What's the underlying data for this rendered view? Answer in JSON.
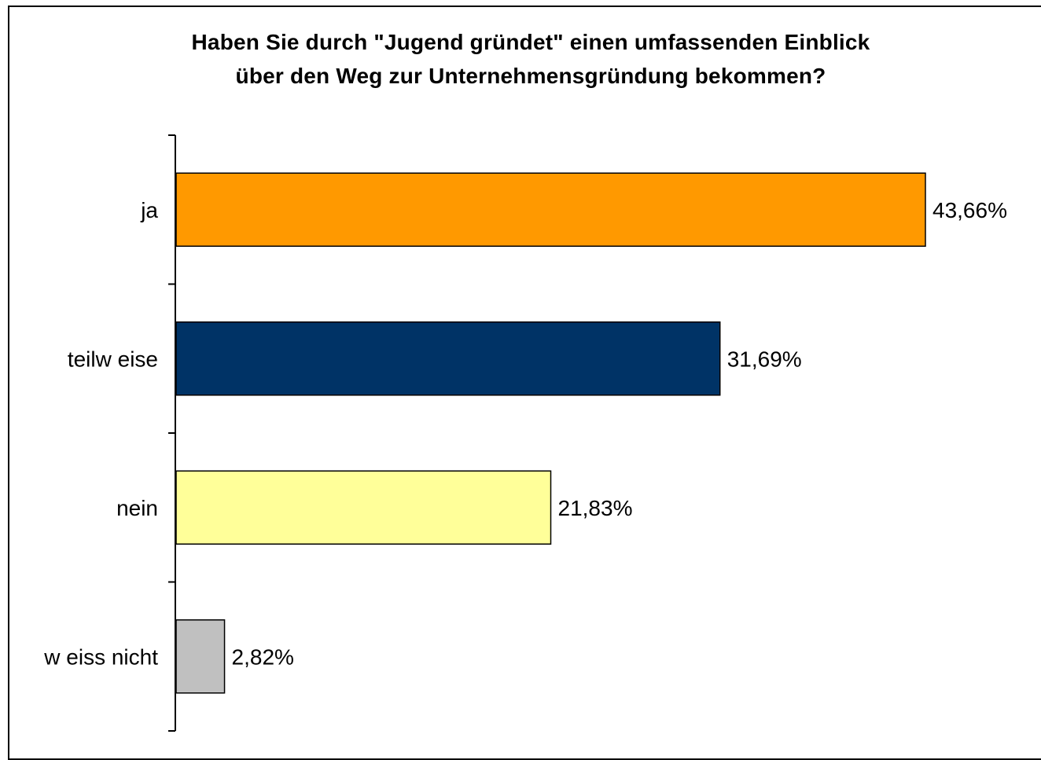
{
  "chart_data": {
    "type": "bar",
    "orientation": "horizontal",
    "title_lines": [
      "Haben Sie durch \"Jugend gründet\" einen umfassenden Einblick",
      "über den Weg zur Unternehmensgründung bekommen?"
    ],
    "categories": [
      "ja",
      "teilw eise",
      "nein",
      "w eiss nicht"
    ],
    "values": [
      43.66,
      31.69,
      21.83,
      2.82
    ],
    "value_labels": [
      "43,66%",
      "31,69%",
      "21,83%",
      "2,82%"
    ],
    "colors": [
      "#ff9900",
      "#003366",
      "#ffff99",
      "#c0c0c0"
    ],
    "unit": "%",
    "xlim": [
      0,
      43.66
    ],
    "xaxis_visible": false,
    "grid": false,
    "legend": "none"
  }
}
